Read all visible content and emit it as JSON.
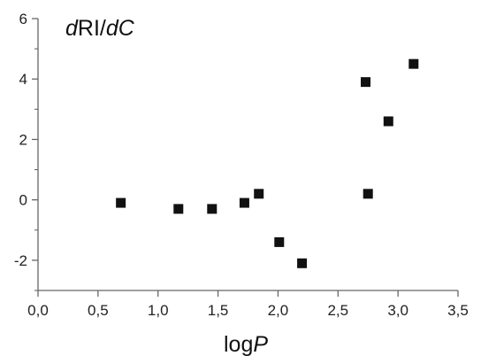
{
  "chart_data": {
    "type": "scatter",
    "title": "",
    "xlabel": {
      "prefix": "log",
      "italic": "P"
    },
    "ylabel": {
      "part1_italic": "d",
      "part2": "RI/",
      "part3_italic": "dC"
    },
    "xlim": [
      0.0,
      3.5
    ],
    "ylim": [
      -3,
      6
    ],
    "x_ticks": [
      0.0,
      0.5,
      1.0,
      1.5,
      2.0,
      2.5,
      3.0,
      3.5
    ],
    "x_tick_labels": [
      "0,0",
      "0,5",
      "1,0",
      "1,5",
      "2,0",
      "2,5",
      "3,0",
      "3,5"
    ],
    "y_ticks_labeled": [
      -2,
      0,
      2,
      4,
      6
    ],
    "y_tick_labels": [
      "-2",
      "0",
      "2",
      "4",
      "6"
    ],
    "y_ticks_minor": [
      -3,
      -1,
      1,
      3,
      5
    ],
    "grid": false,
    "marker": "square",
    "marker_color": "#111111",
    "points": [
      {
        "x": 0.69,
        "y": -0.1
      },
      {
        "x": 1.17,
        "y": -0.3
      },
      {
        "x": 1.45,
        "y": -0.3
      },
      {
        "x": 1.72,
        "y": -0.1
      },
      {
        "x": 1.84,
        "y": 0.2
      },
      {
        "x": 2.01,
        "y": -1.4
      },
      {
        "x": 2.2,
        "y": -2.1
      },
      {
        "x": 2.73,
        "y": 3.9
      },
      {
        "x": 2.75,
        "y": 0.2
      },
      {
        "x": 2.92,
        "y": 2.6
      },
      {
        "x": 3.13,
        "y": 4.5
      }
    ]
  }
}
